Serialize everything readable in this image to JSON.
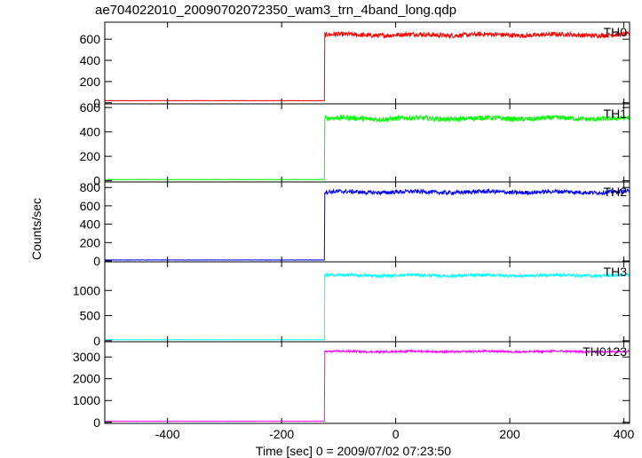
{
  "chart_data": {
    "type": "line",
    "title": "ae704022010_20090702072350_wam3_trn_4band_long.qdp",
    "xlabel": "Time [sec] 0 = 2009/07/02 07:23:50",
    "ylabel": "Counts/sec",
    "xlim": [
      -510,
      410
    ],
    "xticks": [
      -400,
      -200,
      0,
      200,
      400
    ],
    "step_time": -125,
    "grid": false,
    "panels": [
      {
        "name": "TH0",
        "color": "#ff0000",
        "ylim": [
          -10,
          760
        ],
        "yticks": [
          0,
          200,
          400,
          600
        ],
        "pre_level": 20,
        "post_level": 640,
        "noise": 22
      },
      {
        "name": "TH1",
        "color": "#00ff00",
        "ylim": [
          -10,
          630
        ],
        "yticks": [
          0,
          200,
          400,
          600
        ],
        "pre_level": 10,
        "post_level": 510,
        "noise": 20
      },
      {
        "name": "TH2",
        "color": "#0000ff",
        "ylim": [
          -10,
          860
        ],
        "yticks": [
          0,
          200,
          400,
          600,
          800
        ],
        "pre_level": 10,
        "post_level": 750,
        "noise": 22
      },
      {
        "name": "TH3",
        "color": "#00ffff",
        "ylim": [
          -20,
          1570
        ],
        "yticks": [
          0,
          500,
          1000
        ],
        "pre_level": 20,
        "post_level": 1300,
        "noise": 30
      },
      {
        "name": "TH0123",
        "color": "#ff00ff",
        "ylim": [
          -50,
          3700
        ],
        "yticks": [
          0,
          1000,
          2000,
          3000
        ],
        "pre_level": 50,
        "post_level": 3250,
        "noise": 45
      }
    ]
  }
}
